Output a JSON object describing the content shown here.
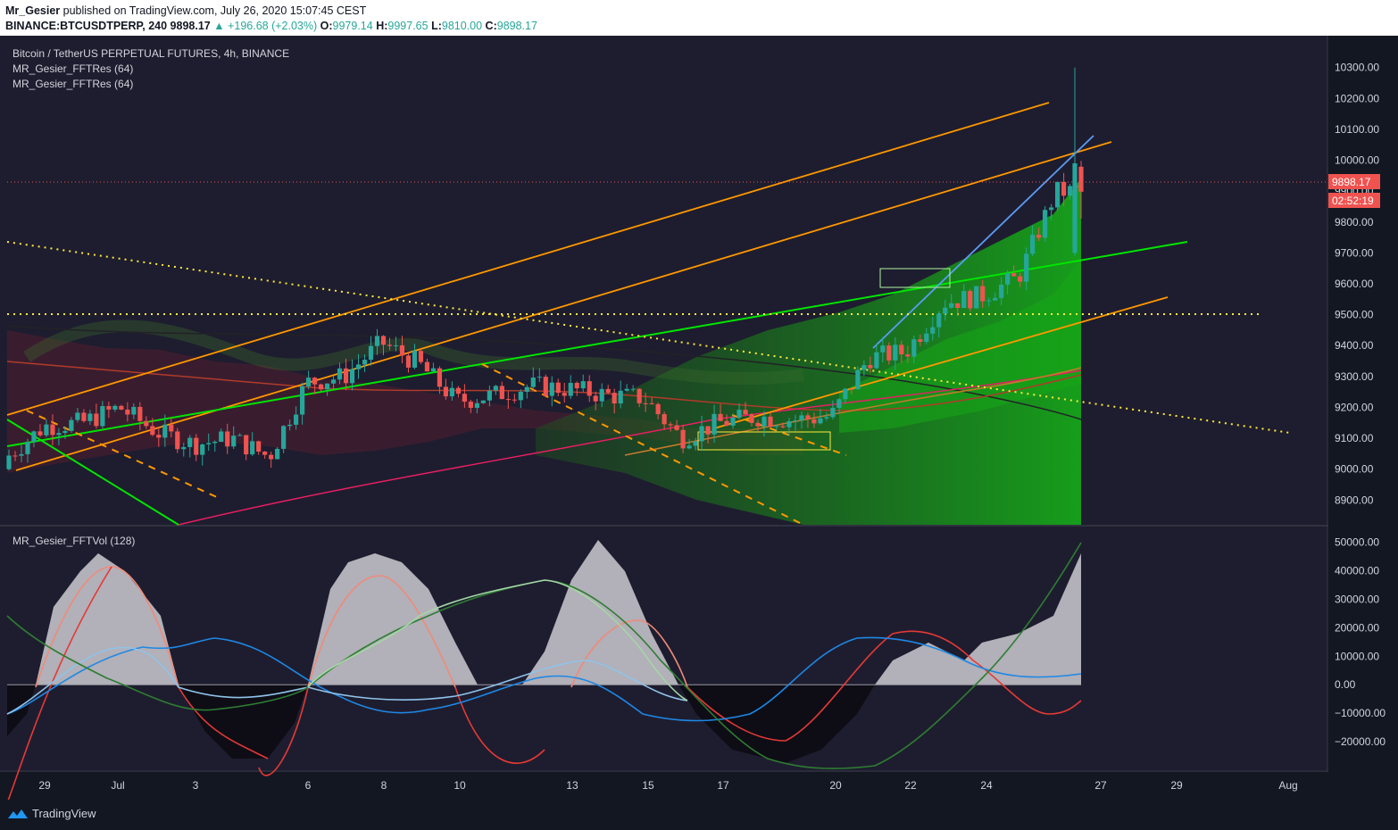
{
  "header": {
    "author": "Mr_Gesier",
    "published": "published on TradingView.com, July 26, 2020 15:07:45 CEST",
    "symbol": "BINANCE:BTCUSDTPERP, 240",
    "last": "9898.17",
    "change": "▲ +196.68 (+2.03%)",
    "o_label": "O:",
    "o": "9979.14",
    "h_label": "H:",
    "h": "9997.65",
    "l_label": "L:",
    "l": "9810.00",
    "c_label": "C:",
    "c": "9898.17"
  },
  "legend": {
    "title": "Bitcoin / TetherUS PERPETUAL FUTURES, 4h, BINANCE",
    "ind1": "MR_Gesier_FFTRes (64)",
    "ind2": "MR_Gesier_FFTRes (64)",
    "ind3": "MR_Gesier_FFTVol (128)"
  },
  "price_tag": {
    "price": "9898.17",
    "countdown": "02:52:19"
  },
  "footer": {
    "brand": "TradingView"
  },
  "colors": {
    "up": "#26a69a",
    "down": "#ef5350",
    "orange": "#ff9800",
    "green": "#00e600",
    "yellow": "#ffeb3b",
    "blue": "#5b9cf6"
  },
  "chart_data": [
    {
      "type": "candlestick",
      "title": "Bitcoin / TetherUS PERPETUAL FUTURES, 4h, BINANCE",
      "x_tick_labels": [
        "29",
        "Jul",
        "3",
        "6",
        "8",
        "10",
        "13",
        "15",
        "17",
        "20",
        "22",
        "24",
        "27",
        "29",
        "Aug"
      ],
      "y_tick_labels": [
        "10300.00",
        "10200.00",
        "10100.00",
        "10000.00",
        "9900.00",
        "9800.00",
        "9700.00",
        "9600.00",
        "9500.00",
        "9400.00",
        "9300.00",
        "9200.00",
        "9100.00",
        "9000.00",
        "8900.00"
      ],
      "ylim": [
        8820,
        10380
      ],
      "last_price": 9898.17,
      "grid": false,
      "approx_close_path": [
        {
          "date": "2020-06-28",
          "close": 9040
        },
        {
          "date": "2020-06-29",
          "close": 9140
        },
        {
          "date": "2020-06-30",
          "close": 9150
        },
        {
          "date": "2020-07-01",
          "close": 9200
        },
        {
          "date": "2020-07-02",
          "close": 9120
        },
        {
          "date": "2020-07-03",
          "close": 9080
        },
        {
          "date": "2020-07-04",
          "close": 9100
        },
        {
          "date": "2020-07-05",
          "close": 9040
        },
        {
          "date": "2020-07-06",
          "close": 9280
        },
        {
          "date": "2020-07-07",
          "close": 9300
        },
        {
          "date": "2020-07-08",
          "close": 9410
        },
        {
          "date": "2020-07-09",
          "close": 9340
        },
        {
          "date": "2020-07-10",
          "close": 9220
        },
        {
          "date": "2020-07-11",
          "close": 9240
        },
        {
          "date": "2020-07-12",
          "close": 9270
        },
        {
          "date": "2020-07-13",
          "close": 9260
        },
        {
          "date": "2020-07-14",
          "close": 9240
        },
        {
          "date": "2020-07-15",
          "close": 9230
        },
        {
          "date": "2020-07-16",
          "close": 9100
        },
        {
          "date": "2020-07-17",
          "close": 9150
        },
        {
          "date": "2020-07-18",
          "close": 9170
        },
        {
          "date": "2020-07-19",
          "close": 9160
        },
        {
          "date": "2020-07-20",
          "close": 9170
        },
        {
          "date": "2020-07-21",
          "close": 9360
        },
        {
          "date": "2020-07-22",
          "close": 9380
        },
        {
          "date": "2020-07-23",
          "close": 9540
        },
        {
          "date": "2020-07-24",
          "close": 9560
        },
        {
          "date": "2020-07-25",
          "close": 9620
        },
        {
          "date": "2020-07-26",
          "close": 9898.17
        }
      ]
    },
    {
      "type": "area",
      "title": "MR_Gesier_FFTVol (128)",
      "y_tick_labels": [
        "50000.00",
        "40000.00",
        "30000.00",
        "20000.00",
        "10000.00",
        "0.00",
        "−10000.00",
        "−20000.00"
      ],
      "ylim": [
        -30000,
        53000
      ],
      "series": []
    }
  ]
}
